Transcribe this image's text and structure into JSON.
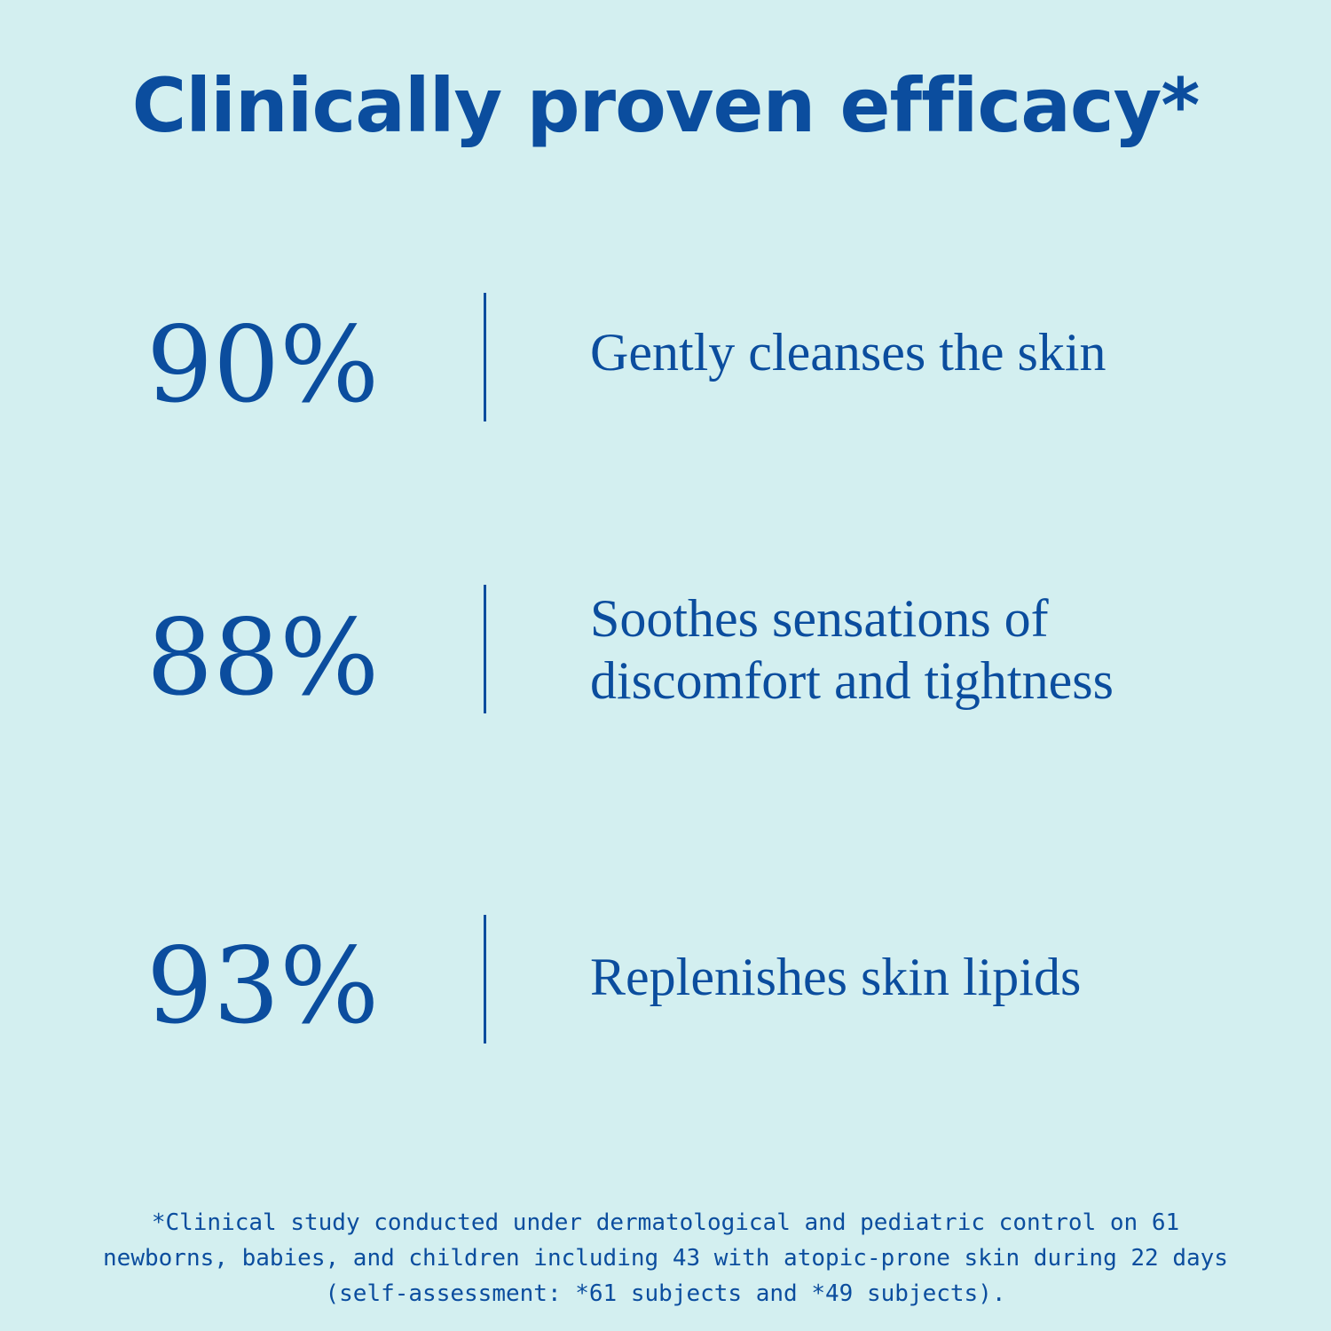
{
  "header": {
    "title": "Clinically proven efficacy*"
  },
  "stats": [
    {
      "value": "90%",
      "lines": [
        "Gently cleanses the skin"
      ]
    },
    {
      "value": "88%",
      "lines": [
        "Soothes sensations of",
        "discomfort and tightness"
      ]
    },
    {
      "value": "93%",
      "lines": [
        "Replenishes skin lipids"
      ]
    }
  ],
  "footnote": {
    "lines": [
      "*Clinical study conducted under dermatological and pediatric control on 61",
      "newborns, babies, and children including 43 with atopic-prone skin during 22 days",
      "(self-assessment: *61 subjects and *49 subjects)."
    ]
  }
}
